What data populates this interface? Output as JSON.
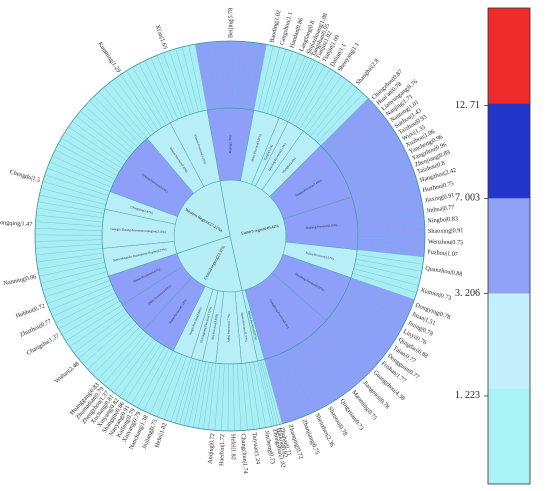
{
  "chart_data": {
    "type": "sunburst",
    "center": {
      "name": "",
      "value": null
    },
    "colorbar": {
      "ticks": [
        1.223,
        3.206,
        7.003,
        12.71
      ],
      "tick_labels": [
        "1. 223",
        "3. 206",
        "7. 003",
        "12. 71"
      ],
      "colors": [
        "#a9f2f6",
        "#c3f0fa",
        "#8fa2f8",
        "#2336c8",
        "#ee2b2b"
      ]
    },
    "regions": [
      {
        "name": "Eastern region",
        "value": 49.42,
        "label": "Eastern region(49.42%",
        "provinces": [
          {
            "name": "Beijing",
            "value": 5.78,
            "label": "Beijing(5.78%)",
            "cities": [
              {
                "name": "Beijing",
                "value": 5.78,
                "label": "Beijing|5.78"
              }
            ]
          },
          {
            "name": "Hebei Province",
            "value": 3.25,
            "label": "Hebei Province(3.25%)",
            "cities": [
              {
                "label": "Baoding|1.02"
              },
              {
                "label": "Cangzhou|1.1"
              },
              {
                "label": "Handan|0.86"
              },
              {
                "label": "Langfang|0.8"
              }
            ]
          },
          {
            "name": "Tianjin",
            "value": 1.2,
            "label": "Tianjin(1.2%)",
            "cities": [
              {
                "label": "Shijiazhuang|1.08"
              },
              {
                "label": "Tangshan|0.95"
              },
              {
                "label": "Tianjin|1.02"
              }
            ]
          },
          {
            "name": "Liaoning Province",
            "value": 2.15,
            "label": "Liaoning Province(2.15%)",
            "cities": [
              {
                "label": "Tianjin|1.09"
              },
              {
                "label": "Dalian|1.1"
              },
              {
                "label": "Shenyang|1.1"
              }
            ]
          },
          {
            "name": "Shanghai",
            "value": 2.8,
            "label": "Shanghai(2.8%)",
            "cities": [
              {
                "label": "Shanghai|2.8"
              }
            ]
          },
          {
            "name": "Jiangsu Province",
            "value": 7.44,
            "label": "Jiangsu Province(7.44%)",
            "cities": [
              {
                "label": "Changzhou|0.87"
              },
              {
                "label": "Huai'an|0.78"
              },
              {
                "label": "Lianyungang|0.76"
              },
              {
                "label": "Nanjing|1.71"
              },
              {
                "label": "Nantong|1.01"
              },
              {
                "label": "Suzhou|1.43"
              },
              {
                "label": "Taizhou|0.93"
              },
              {
                "label": "Wuxi|1.35"
              },
              {
                "label": "Xuzhou|1.06"
              },
              {
                "label": "Yancheng|0.96"
              },
              {
                "label": "Yangzhou|0.96"
              },
              {
                "label": "Zhenjiang|0.89"
              },
              {
                "label": "Taizhou|0.8"
              }
            ]
          },
          {
            "name": "Zhejiang Province",
            "value": 6.55,
            "label": "Zhejiang Province(6.55%)",
            "cities": [
              {
                "label": "Hangzhou|2.42"
              },
              {
                "label": "Huzhou|0.75"
              },
              {
                "label": "Jiaxing|0.91"
              },
              {
                "label": "Jinhua|0.77"
              },
              {
                "label": "Ningbo|0.83"
              },
              {
                "label": "Shaoxing|0.91"
              },
              {
                "label": "Wenzhou|0.75"
              },
              {
                "label": "Fuzhou|1.07"
              }
            ]
          },
          {
            "name": "Fujian Province",
            "value": 3.52,
            "label": "Fujian Province(3.52%)",
            "cities": [
              {
                "label": "Quanzhou|0.88"
              },
              {
                "label": "Xiamen|0.73"
              }
            ]
          },
          {
            "name": "Shandong Province",
            "value": 6.07,
            "label": "Shandong Province(6.07%)",
            "cities": [
              {
                "label": "Dongying|0.78"
              },
              {
                "label": "Jinan|1.51"
              },
              {
                "label": "Jining|0.78"
              },
              {
                "label": "Linyi|0.76"
              },
              {
                "label": "Qingdao|0.88"
              },
              {
                "label": "Taian|0.77"
              },
              {
                "label": "Dongguan|0.77"
              },
              {
                "label": "Foshan|1.77"
              }
            ]
          },
          {
            "name": "Guangdong Province",
            "value": 9.1,
            "label": "Guangdong Province(9.1%)",
            "cities": [
              {
                "label": "Guangzhou|4.38"
              },
              {
                "label": "Jiangmen|0.78"
              },
              {
                "label": "Maoming|0.75"
              },
              {
                "label": "Qingyuan|0.73"
              },
              {
                "label": "Shantou|0.78"
              },
              {
                "label": "Shenzhen|2.36"
              },
              {
                "label": "Zhanjiang|0.75"
              },
              {
                "label": "Zhaoqing|0.72"
              }
            ]
          },
          {
            "name": "Hainan Province",
            "value": 0.87,
            "label": "Hainan Province(0.87%)",
            "cities": [
              {
                "label": "Zhuhai|0.71"
              },
              {
                "label": "Haikou|0.82"
              },
              {
                "label": "Zhongshan|1.02"
              }
            ]
          }
        ]
      },
      {
        "name": "Central region",
        "value": 23.37,
        "label": "Central region(23.37%",
        "provinces": [
          {
            "name": "Shanxi Province",
            "value": 2.37,
            "label": "Shanxi Province(2.37%)",
            "cities": [
              {
                "label": "Jincheng|0.73"
              },
              {
                "label": "Taiyuan|1.24"
              }
            ]
          },
          {
            "name": "Anhui Province",
            "value": 3.77,
            "label": "Anhui Province(3.77%)",
            "cities": [
              {
                "label": "Changchun|1.74"
              },
              {
                "label": "Hefei|1.82"
              },
              {
                "label": "Haerbin|1.72"
              },
              {
                "label": "Anqing|0.72"
              }
            ]
          },
          {
            "name": "Jilin Province",
            "value": 1.95,
            "label": "Jilin Province(1.95%)",
            "cities": []
          },
          {
            "name": "Heilongjiang Province",
            "value": 1.72,
            "label": "Heilongjiang Province(1.72%)",
            "cities": []
          },
          {
            "name": "Jiangxi Province",
            "value": 2.84,
            "label": "Jiangxi Province(2.84%)",
            "cities": [
              {
                "label": "Hefei|1.82"
              },
              {
                "label": "Jiujiang|0.75"
              },
              {
                "label": "Nanchang|1.38"
              }
            ]
          },
          {
            "name": "Henan Province",
            "value": 5.32,
            "label": "Henan Province(5.32%)",
            "cities": [
              {
                "label": "Xinyang|0.79"
              },
              {
                "label": "Kaifeng|0.79"
              },
              {
                "label": "Nanyang|0.91"
              },
              {
                "label": "Shangqiu|0.86"
              },
              {
                "label": "Xinyang|0.82"
              },
              {
                "label": "Xuchang|0.81"
              },
              {
                "label": "Zhengzhou|1.37"
              },
              {
                "label": "Zhumadian|0.79"
              },
              {
                "label": "Huanggang|0.83"
              }
            ]
          },
          {
            "name": "Hubei Province",
            "value": 4.84,
            "label": "Hubei Province(4.84%)",
            "cities": [
              {
                "label": "Wuhan|2.48"
              }
            ]
          },
          {
            "name": "Hunan Province",
            "value": 4.67,
            "label": "Hunan Province(4.67%)",
            "cities": [
              {
                "label": "Changsha|1.37"
              },
              {
                "label": "Zhuzhou|0.77"
              },
              {
                "label": "Hohhot|0.72"
              }
            ]
          }
        ]
      },
      {
        "name": "Western Region",
        "value": 27.21,
        "label": "Western Region(27.21%)",
        "provinces": [
          {
            "name": "Inner Mongolia Autonomous Region",
            "value": 2.27,
            "label": "Inner Mongolia Autonomous Region(2.27%)",
            "cities": [
              {
                "label": "Nanning|0.86"
              }
            ]
          },
          {
            "name": "Guangxi Zhuang Autonomous Region",
            "value": 3.15,
            "label": "Guangxi Zhuang Autonomous Region(3.15%)",
            "cities": [
              {
                "label": "Chongqing|1.47"
              }
            ]
          },
          {
            "name": "Chongqing",
            "value": 1.47,
            "label": "Chongqing(1.47%)",
            "cities": [
              {
                "label": "Chengdu|1.5"
              }
            ]
          },
          {
            "name": "Sichuan Province",
            "value": 5.23,
            "label": "Sichuan Province(5.23%)",
            "cities": []
          },
          {
            "name": "Yunnan Province",
            "value": 2.22,
            "label": "Yunnan Province(2.22%)",
            "cities": [
              {
                "label": "Kunming|1.29"
              }
            ]
          },
          {
            "name": "Shaanxi Province",
            "value": 3.13,
            "label": "Shaanxi Province(3.13%)",
            "cities": [
              {
                "label": "Xi'an|1.65"
              }
            ]
          }
        ]
      }
    ]
  }
}
